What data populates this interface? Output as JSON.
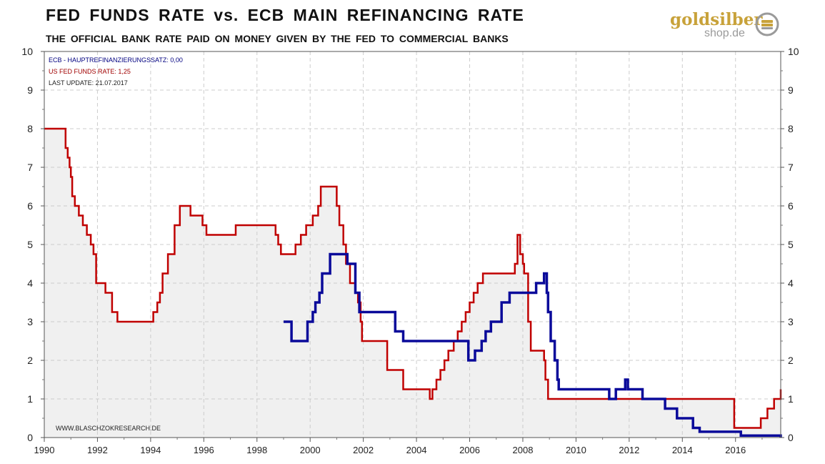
{
  "header": {
    "title": "FED FUNDS RATE vs. ECB MAIN REFINANCING RATE",
    "subtitle": "THE OFFICIAL BANK RATE PAID ON MONEY GIVEN BY THE FED TO COMMERCIAL BANKS"
  },
  "logo": {
    "brand": "goldsilber",
    "domain": "shop.de",
    "icon": "coin-stack-icon"
  },
  "chart_data": {
    "type": "line",
    "title": "FED FUNDS RATE vs. ECB MAIN REFINANCING RATE",
    "subtitle": "THE OFFICIAL BANK RATE PAID ON MONEY GIVEN BY THE FED TO COMMERCIAL BANKS",
    "xlabel": "",
    "ylabel": "",
    "xlim": [
      1990,
      2017.7
    ],
    "ylim": [
      0,
      10
    ],
    "x_ticks": [
      "1990",
      "1992",
      "1994",
      "1996",
      "1998",
      "2000",
      "2002",
      "2004",
      "2006",
      "2008",
      "2010",
      "2012",
      "2014",
      "2016"
    ],
    "y_ticks": [
      "0",
      "1",
      "2",
      "3",
      "4",
      "5",
      "6",
      "7",
      "8",
      "9",
      "10"
    ],
    "grid": true,
    "step": true,
    "legend": [
      {
        "label": "ECB -  HAUPTREFINANZIERUNGSSATZ:  0,00",
        "color": "#000080"
      },
      {
        "label": "US FED FUNDS RATE: 1,25",
        "color": "#a00000"
      },
      {
        "label": "LAST UPDATE: 21.07.2017",
        "color": "#222222"
      }
    ],
    "legend_position": "top-left",
    "source": "WWW.BLASCHZOKRESEARCH.DE",
    "series": [
      {
        "name": "US FED FUNDS RATE",
        "color": "#c00000",
        "fill": "#f0f0f0",
        "x": [
          1990.0,
          1990.8,
          1990.88,
          1990.95,
          1991.0,
          1991.05,
          1991.15,
          1991.3,
          1991.45,
          1991.6,
          1991.75,
          1991.85,
          1991.95,
          1992.3,
          1992.55,
          1992.75,
          1993.0,
          1994.1,
          1994.25,
          1994.35,
          1994.45,
          1994.65,
          1994.9,
          1995.1,
          1995.5,
          1995.95,
          1996.1,
          1997.2,
          1998.7,
          1998.8,
          1998.9,
          1999.45,
          1999.65,
          1999.85,
          2000.1,
          2000.3,
          2000.4,
          2001.0,
          2001.1,
          2001.25,
          2001.35,
          2001.5,
          2001.7,
          2001.8,
          2001.9,
          2001.95,
          2002.9,
          2003.5,
          2004.5,
          2004.6,
          2004.75,
          2004.9,
          2005.05,
          2005.2,
          2005.4,
          2005.55,
          2005.7,
          2005.85,
          2006.0,
          2006.15,
          2006.3,
          2006.5,
          2007.7,
          2007.8,
          2007.9,
          2008.0,
          2008.05,
          2008.2,
          2008.3,
          2008.8,
          2008.85,
          2008.95,
          2015.95,
          2016.95,
          2017.2,
          2017.45,
          2017.7
        ],
        "values": [
          8.0,
          7.5,
          7.25,
          7.0,
          6.75,
          6.25,
          6.0,
          5.75,
          5.5,
          5.25,
          5.0,
          4.75,
          4.0,
          3.75,
          3.25,
          3.0,
          3.0,
          3.25,
          3.5,
          3.75,
          4.25,
          4.75,
          5.5,
          6.0,
          5.75,
          5.5,
          5.25,
          5.5,
          5.25,
          5.0,
          4.75,
          5.0,
          5.25,
          5.5,
          5.75,
          6.0,
          6.5,
          6.0,
          5.5,
          5.0,
          4.5,
          4.0,
          3.75,
          3.5,
          3.0,
          2.5,
          1.75,
          1.25,
          1.0,
          1.25,
          1.5,
          1.75,
          2.0,
          2.25,
          2.5,
          2.75,
          3.0,
          3.25,
          3.5,
          3.75,
          4.0,
          4.25,
          4.5,
          5.25,
          4.75,
          4.5,
          4.25,
          3.0,
          2.25,
          2.0,
          1.5,
          1.0,
          0.25,
          0.5,
          0.75,
          1.0,
          1.25
        ]
      },
      {
        "name": "ECB HAUPTREFINANZIERUNGSSATZ",
        "color": "#0a0a9a",
        "x": [
          1999.0,
          1999.3,
          1999.9,
          2000.1,
          2000.2,
          2000.35,
          2000.45,
          2000.75,
          2001.4,
          2001.7,
          2001.85,
          2003.2,
          2003.5,
          2005.95,
          2006.2,
          2006.45,
          2006.6,
          2006.8,
          2007.2,
          2007.5,
          2008.5,
          2008.8,
          2008.9,
          2008.95,
          2009.05,
          2009.2,
          2009.3,
          2009.35,
          2011.25,
          2011.5,
          2011.85,
          2011.95,
          2012.5,
          2013.35,
          2013.8,
          2014.4,
          2014.65,
          2016.2,
          2017.7
        ],
        "values": [
          3.0,
          2.5,
          3.0,
          3.25,
          3.5,
          3.75,
          4.25,
          4.75,
          4.5,
          3.75,
          3.25,
          2.75,
          2.5,
          2.0,
          2.25,
          2.5,
          2.75,
          3.0,
          3.5,
          3.75,
          4.0,
          4.25,
          3.75,
          3.25,
          2.5,
          2.0,
          1.5,
          1.25,
          1.0,
          1.25,
          1.5,
          1.25,
          1.0,
          0.75,
          0.5,
          0.25,
          0.15,
          0.05,
          0.0
        ]
      }
    ]
  }
}
